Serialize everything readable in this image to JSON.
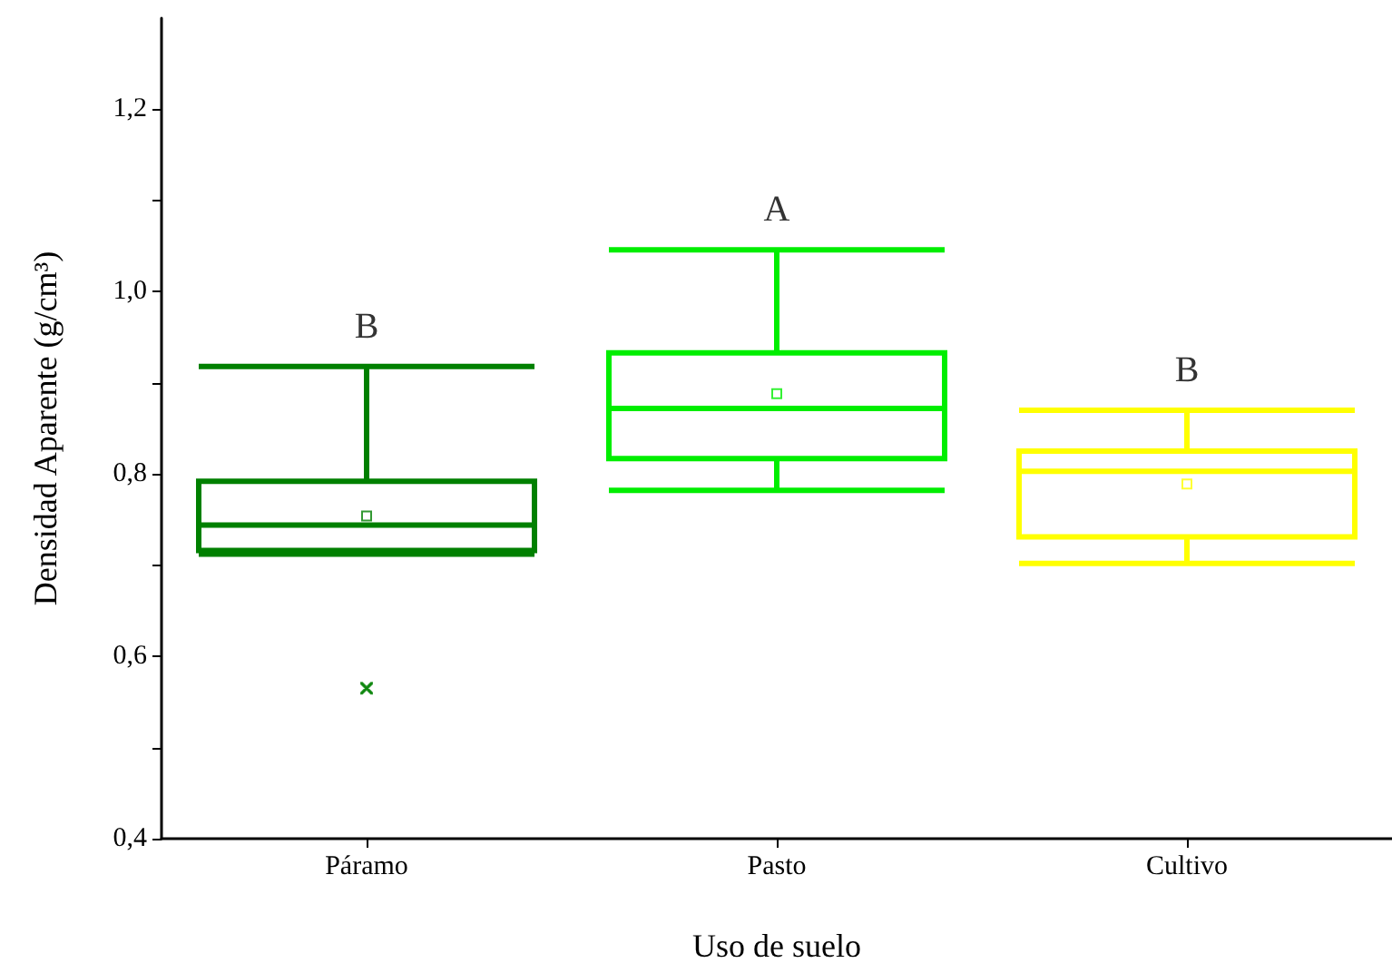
{
  "chart_data": {
    "type": "box",
    "xlabel": "Uso de suelo",
    "ylabel": "Densidad Aparente (g/cm³)",
    "categories": [
      "Páramo",
      "Pasto",
      "Cultivo"
    ],
    "colors": [
      "#008000",
      "#00ee00",
      "#ffff00"
    ],
    "boxes": [
      {
        "low": 0.712,
        "q1": 0.716,
        "median": 0.744,
        "q3": 0.792,
        "high": 0.918,
        "mean": 0.754,
        "outliers": [
          0.565
        ]
      },
      {
        "low": 0.782,
        "q1": 0.817,
        "median": 0.872,
        "q3": 0.933,
        "high": 1.046,
        "mean": 0.888
      },
      {
        "low": 0.702,
        "q1": 0.731,
        "median": 0.803,
        "q3": 0.825,
        "high": 0.87,
        "mean": 0.789
      }
    ],
    "ylim": [
      0.4,
      1.3
    ],
    "yticks": [
      {
        "value": 0.4,
        "label": "0,4"
      },
      {
        "value": 0.5,
        "label": null
      },
      {
        "value": 0.6,
        "label": "0,6"
      },
      {
        "value": 0.7,
        "label": null
      },
      {
        "value": 0.8,
        "label": "0,8"
      },
      {
        "value": 0.9,
        "label": null
      },
      {
        "value": 1.0,
        "label": "1,0"
      },
      {
        "value": 1.1,
        "label": null
      },
      {
        "value": 1.2,
        "label": "1,2"
      }
    ],
    "grid": false,
    "annotations": [
      "B",
      "A",
      "B"
    ]
  }
}
